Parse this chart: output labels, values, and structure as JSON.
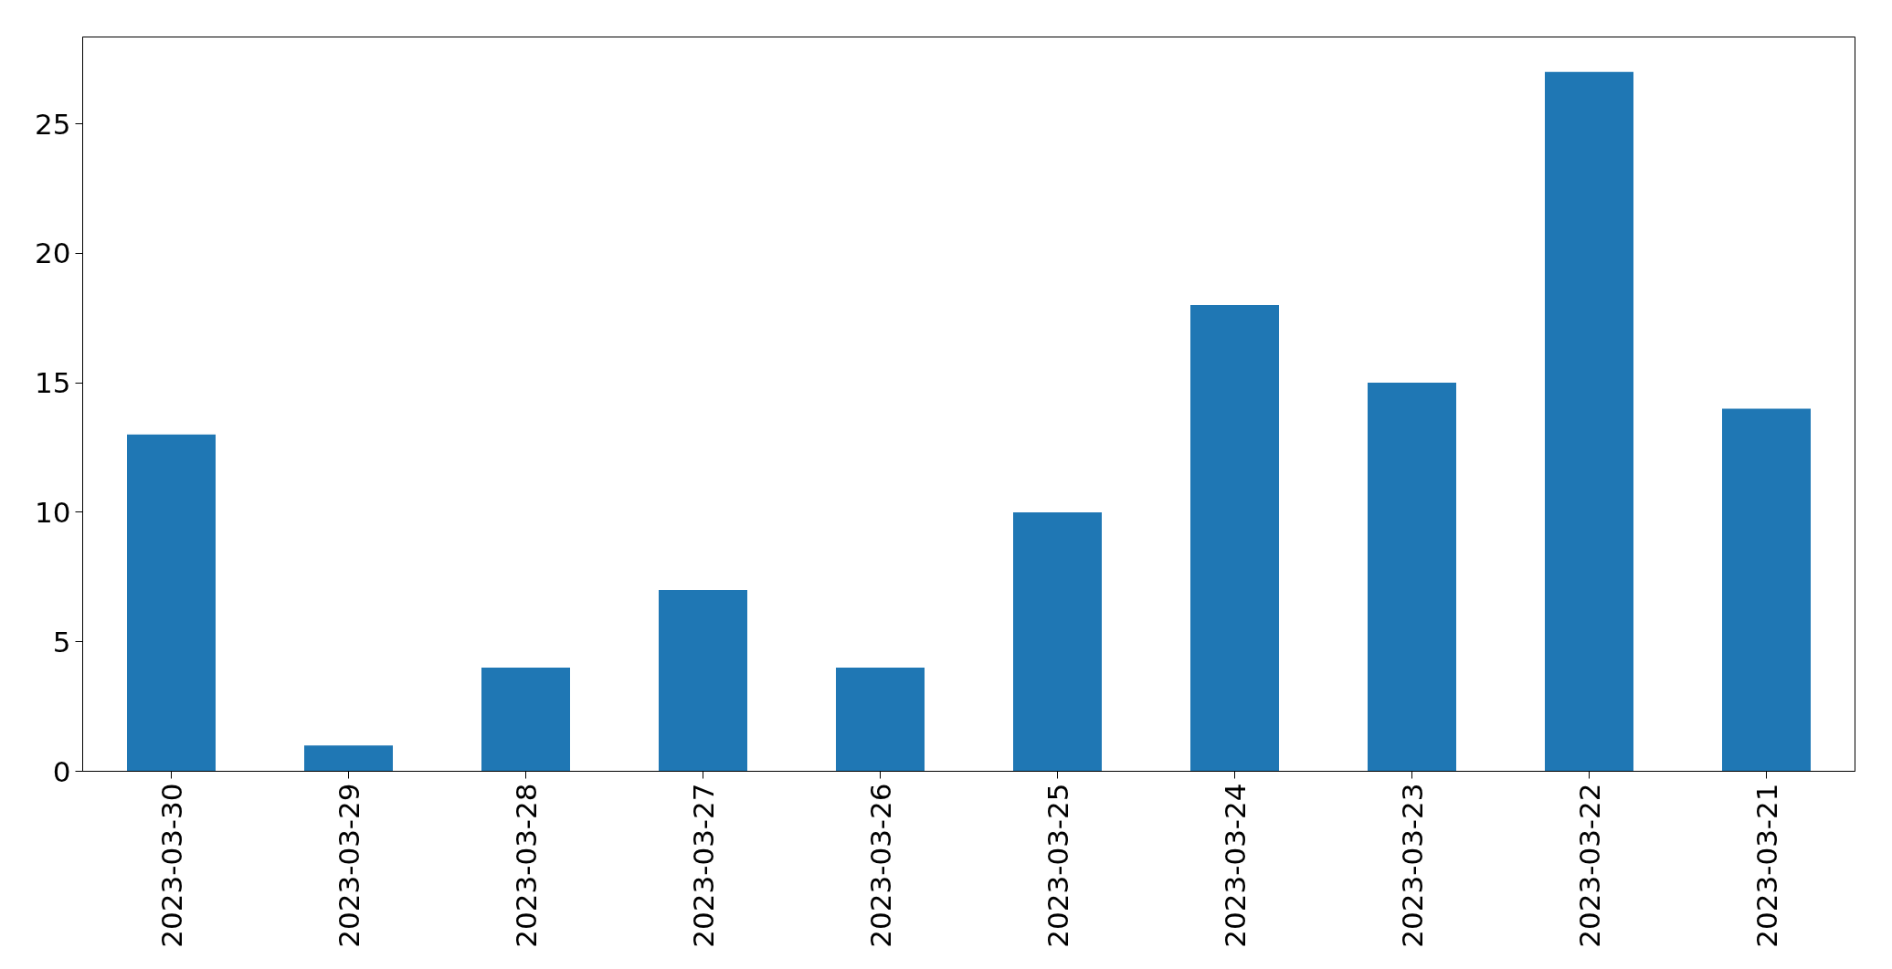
{
  "chart_data": {
    "type": "bar",
    "categories": [
      "2023-03-30",
      "2023-03-29",
      "2023-03-28",
      "2023-03-27",
      "2023-03-26",
      "2023-03-25",
      "2023-03-24",
      "2023-03-23",
      "2023-03-22",
      "2023-03-21"
    ],
    "values": [
      13,
      1,
      4,
      7,
      4,
      10,
      18,
      15,
      27,
      14
    ],
    "color": "#1f77b4",
    "ylim": [
      0,
      28.35
    ],
    "yticks": [
      0,
      5,
      10,
      15,
      20,
      25
    ],
    "grid": false
  }
}
